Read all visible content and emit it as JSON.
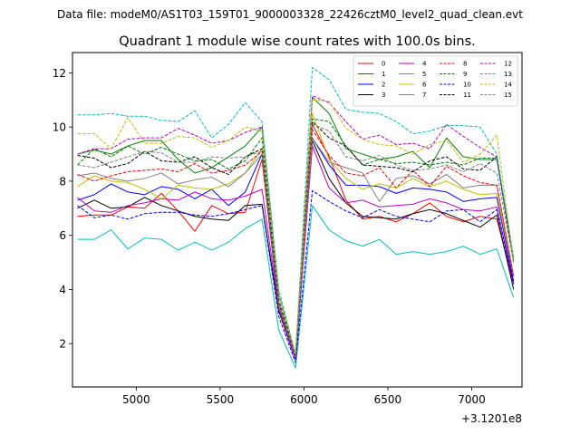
{
  "chart_data": {
    "type": "line",
    "suptitle": "Data file: modeM0/AS1T03_159T01_9000003328_22426cztM0_level2_quad_clean.evt",
    "title": "Quadrant 1 module wise count rates with 100.0s bins.",
    "offset_label": "+3.1201e8",
    "xlim": [
      4620,
      7300
    ],
    "ylim": [
      0.4,
      12.75
    ],
    "xticks": [
      5000,
      5500,
      6000,
      6500,
      7000
    ],
    "yticks": [
      2,
      4,
      6,
      8,
      10,
      12
    ],
    "x": [
      4650,
      4750,
      4850,
      4950,
      5050,
      5150,
      5250,
      5350,
      5450,
      5550,
      5650,
      5750,
      5850,
      5950,
      6050,
      6150,
      6250,
      6350,
      6450,
      6550,
      6650,
      6750,
      6850,
      6950,
      7050,
      7150,
      7250
    ],
    "series": [
      {
        "name": "0",
        "color": "#ff0000",
        "dash": "solid",
        "values": [
          6.7,
          6.75,
          6.75,
          7.05,
          7.0,
          7.55,
          6.9,
          6.15,
          7.1,
          6.8,
          6.85,
          8.8,
          3.3,
          1.5,
          10.1,
          8.9,
          7.3,
          6.6,
          6.7,
          6.5,
          6.8,
          7.2,
          6.7,
          6.5,
          6.7,
          6.6,
          4.2
        ]
      },
      {
        "name": "1",
        "color": "#008000",
        "dash": "solid",
        "values": [
          9.0,
          9.15,
          9.0,
          9.3,
          9.5,
          9.5,
          8.8,
          8.3,
          8.5,
          8.9,
          9.3,
          10.0,
          3.8,
          1.6,
          11.1,
          10.5,
          9.2,
          9.0,
          8.8,
          8.9,
          9.1,
          8.5,
          9.6,
          8.9,
          8.8,
          8.8,
          5.1
        ]
      },
      {
        "name": "2",
        "color": "#0000ff",
        "dash": "solid",
        "values": [
          7.3,
          7.5,
          7.9,
          7.6,
          7.5,
          7.8,
          7.7,
          7.35,
          7.7,
          7.1,
          7.6,
          9.0,
          3.3,
          1.5,
          9.6,
          8.6,
          7.85,
          7.85,
          7.8,
          7.55,
          7.75,
          7.7,
          7.6,
          7.25,
          7.35,
          7.4,
          4.3
        ]
      },
      {
        "name": "3",
        "color": "#000000",
        "dash": "solid",
        "values": [
          7.0,
          7.3,
          7.0,
          7.05,
          7.4,
          7.1,
          6.9,
          6.7,
          6.6,
          6.55,
          7.1,
          7.15,
          3.2,
          1.4,
          9.5,
          8.1,
          7.2,
          6.7,
          6.65,
          6.6,
          6.8,
          6.95,
          6.8,
          6.55,
          6.3,
          6.75,
          4.0
        ]
      },
      {
        "name": "4",
        "color": "#c000c0",
        "dash": "solid",
        "values": [
          7.4,
          6.9,
          6.85,
          7.1,
          7.2,
          7.35,
          7.3,
          7.6,
          7.35,
          7.3,
          7.45,
          7.7,
          3.3,
          1.4,
          9.3,
          7.75,
          7.2,
          7.3,
          7.05,
          7.1,
          7.15,
          7.35,
          7.2,
          6.95,
          6.9,
          7.05,
          4.2
        ]
      },
      {
        "name": "5",
        "color": "#00c0c0",
        "dash": "solid",
        "values": [
          5.85,
          5.85,
          6.2,
          5.5,
          5.9,
          5.85,
          5.45,
          5.75,
          5.45,
          5.75,
          6.25,
          6.6,
          2.5,
          1.1,
          7.1,
          6.2,
          5.8,
          5.6,
          5.85,
          5.3,
          5.4,
          5.3,
          5.4,
          5.6,
          5.3,
          5.5,
          3.7
        ]
      },
      {
        "name": "6",
        "color": "#c0c000",
        "dash": "solid",
        "values": [
          7.8,
          8.2,
          8.0,
          7.95,
          7.7,
          7.35,
          7.85,
          7.75,
          7.7,
          7.9,
          8.3,
          9.2,
          3.5,
          1.5,
          10.5,
          8.8,
          8.1,
          7.7,
          7.9,
          7.75,
          8.1,
          7.8,
          8.0,
          7.7,
          7.5,
          7.55,
          4.5
        ]
      },
      {
        "name": "7",
        "color": "#808080",
        "dash": "solid",
        "values": [
          8.2,
          8.3,
          8.1,
          8.0,
          8.1,
          8.3,
          7.9,
          8.05,
          8.15,
          7.8,
          8.3,
          9.0,
          3.4,
          1.5,
          9.6,
          8.7,
          8.5,
          8.3,
          7.25,
          8.1,
          8.2,
          7.9,
          8.25,
          7.75,
          7.85,
          7.85,
          4.5
        ]
      },
      {
        "name": "8",
        "color": "#ff0000",
        "dash": "dashed",
        "values": [
          8.25,
          8.0,
          8.2,
          8.35,
          8.4,
          8.45,
          8.35,
          8.65,
          8.3,
          8.4,
          8.6,
          9.1,
          3.5,
          1.5,
          9.9,
          8.95,
          8.3,
          8.2,
          8.5,
          7.75,
          8.4,
          7.8,
          8.55,
          8.2,
          7.95,
          7.85,
          4.5
        ]
      },
      {
        "name": "9",
        "color": "#008000",
        "dash": "dashed",
        "values": [
          8.6,
          9.2,
          8.9,
          9.3,
          9.0,
          9.25,
          9.0,
          8.75,
          8.8,
          8.45,
          8.75,
          9.6,
          3.6,
          1.6,
          10.3,
          10.2,
          9.3,
          8.6,
          8.8,
          8.65,
          8.7,
          8.6,
          8.7,
          8.6,
          8.85,
          8.85,
          5.0
        ]
      },
      {
        "name": "10",
        "color": "#0000ff",
        "dash": "dashed",
        "values": [
          7.1,
          6.65,
          6.75,
          6.6,
          6.8,
          6.85,
          6.85,
          6.75,
          6.7,
          6.8,
          6.95,
          7.1,
          3.0,
          1.3,
          7.65,
          7.25,
          6.9,
          6.65,
          6.95,
          6.7,
          6.6,
          6.5,
          6.9,
          6.95,
          6.5,
          6.95,
          4.2
        ]
      },
      {
        "name": "11",
        "color": "#000000",
        "dash": "dashed",
        "values": [
          8.95,
          8.85,
          8.5,
          8.65,
          9.1,
          8.75,
          8.7,
          8.9,
          8.5,
          8.25,
          8.9,
          9.2,
          3.5,
          1.5,
          10.2,
          9.6,
          9.3,
          8.6,
          8.55,
          8.5,
          8.35,
          8.75,
          8.9,
          8.45,
          8.4,
          8.9,
          5.0
        ]
      },
      {
        "name": "12",
        "color": "#c000c0",
        "dash": "dashed",
        "values": [
          9.0,
          9.2,
          9.2,
          9.55,
          9.6,
          9.6,
          9.95,
          9.7,
          9.4,
          9.5,
          9.8,
          10.0,
          3.8,
          1.6,
          11.15,
          10.9,
          10.2,
          9.55,
          9.7,
          9.35,
          9.4,
          9.2,
          10.1,
          9.65,
          9.25,
          8.9,
          5.1
        ]
      },
      {
        "name": "13",
        "color": "#00c0c0",
        "dash": "dashed",
        "values": [
          10.45,
          10.45,
          10.5,
          10.4,
          10.4,
          10.25,
          10.2,
          10.6,
          9.6,
          10.1,
          10.9,
          10.2,
          4.0,
          1.6,
          12.2,
          11.75,
          10.65,
          10.55,
          10.5,
          10.2,
          9.75,
          9.85,
          10.05,
          10.05,
          10.0,
          9.0,
          5.2
        ]
      },
      {
        "name": "14",
        "color": "#c0c000",
        "dash": "dashed",
        "values": [
          9.75,
          9.75,
          9.2,
          10.35,
          9.4,
          9.4,
          9.65,
          9.6,
          9.25,
          9.5,
          10.0,
          9.85,
          3.8,
          1.6,
          11.0,
          10.95,
          9.95,
          9.55,
          9.35,
          9.3,
          9.0,
          9.35,
          9.5,
          8.7,
          9.0,
          9.7,
          5.0
        ]
      },
      {
        "name": "15",
        "color": "#808080",
        "dash": "dashed",
        "values": [
          8.6,
          8.5,
          8.7,
          8.9,
          9.1,
          9.05,
          8.7,
          8.7,
          8.9,
          8.85,
          8.9,
          9.1,
          3.5,
          1.5,
          10.1,
          9.85,
          8.9,
          8.75,
          8.95,
          8.6,
          8.4,
          8.45,
          8.6,
          8.35,
          8.65,
          8.3,
          5.0
        ]
      }
    ],
    "legend_location": "top-right",
    "legend_columns": 4,
    "grid": false
  }
}
